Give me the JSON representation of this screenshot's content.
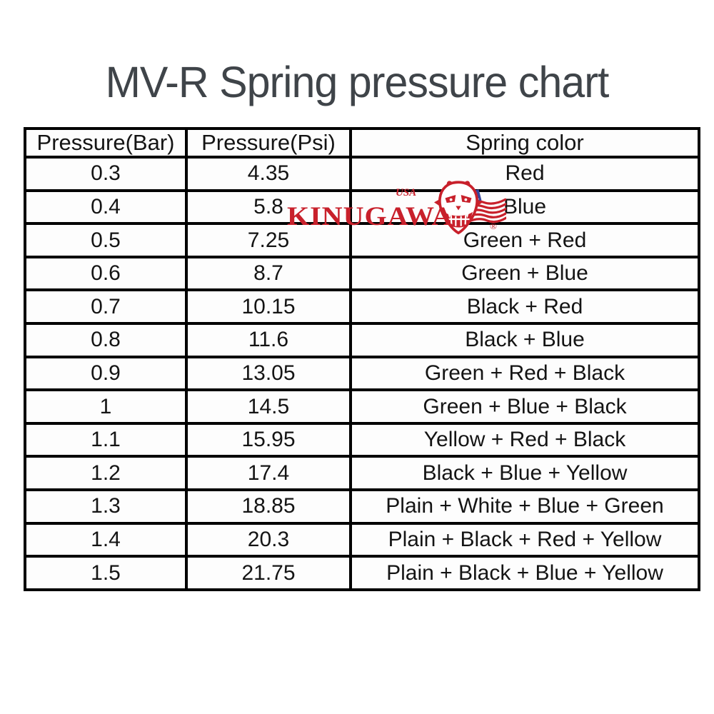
{
  "title": "MV-R Spring pressure chart",
  "logo": {
    "brand": "KINUGAWA",
    "country": "USA",
    "registered": "®",
    "colors": {
      "red": "#c8202b",
      "flag_blue": "#36459c"
    }
  },
  "chart_data": {
    "type": "table",
    "title": "MV-R Spring pressure chart",
    "columns": [
      "Pressure(Bar)",
      "Pressure(Psi)",
      "Spring color"
    ],
    "rows": [
      [
        "0.3",
        "4.35",
        "Red"
      ],
      [
        "0.4",
        "5.8",
        "Blue"
      ],
      [
        "0.5",
        "7.25",
        "Green + Red"
      ],
      [
        "0.6",
        "8.7",
        "Green + Blue"
      ],
      [
        "0.7",
        "10.15",
        "Black + Red"
      ],
      [
        "0.8",
        "11.6",
        "Black + Blue"
      ],
      [
        "0.9",
        "13.05",
        "Green + Red + Black"
      ],
      [
        "1",
        "14.5",
        "Green + Blue + Black"
      ],
      [
        "1.1",
        "15.95",
        "Yellow + Red + Black"
      ],
      [
        "1.2",
        "17.4",
        "Black + Blue + Yellow"
      ],
      [
        "1.3",
        "18.85",
        "Plain + White + Blue + Green"
      ],
      [
        "1.4",
        "20.3",
        "Plain + Black + Red + Yellow"
      ],
      [
        "1.5",
        "21.75",
        "Plain + Black + Blue + Yellow"
      ]
    ]
  }
}
